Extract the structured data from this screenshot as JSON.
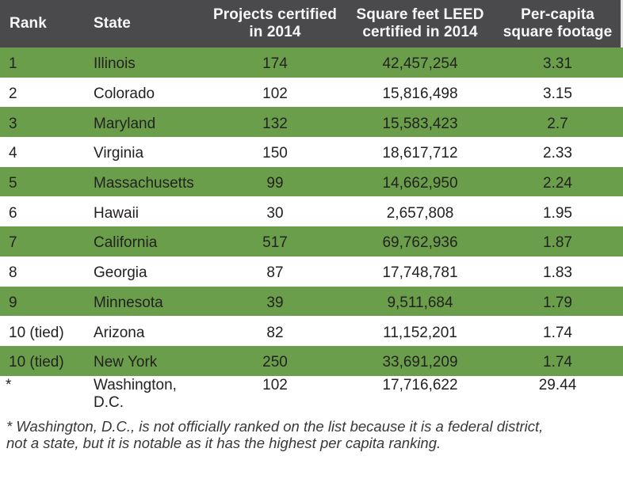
{
  "table": {
    "columns": [
      {
        "key": "rank",
        "label": "Rank"
      },
      {
        "key": "state",
        "label": "State"
      },
      {
        "key": "projects",
        "label": "Projects certified\nin 2014"
      },
      {
        "key": "sqft",
        "label": "Square feet LEED\ncertified in 2014"
      },
      {
        "key": "percap",
        "label": "Per-capita\nsquare footage"
      }
    ],
    "rows": [
      {
        "rank": "1",
        "state": "Illinois",
        "projects": "174",
        "sqft": "42,457,254",
        "percap": "3.31"
      },
      {
        "rank": "2",
        "state": "Colorado",
        "projects": "102",
        "sqft": "15,816,498",
        "percap": "3.15"
      },
      {
        "rank": "3",
        "state": "Maryland",
        "projects": "132",
        "sqft": "15,583,423",
        "percap": "2.7"
      },
      {
        "rank": "4",
        "state": "Virginia",
        "projects": "150",
        "sqft": "18,617,712",
        "percap": "2.33"
      },
      {
        "rank": "5",
        "state": "Massachusetts",
        "projects": "99",
        "sqft": "14,662,950",
        "percap": "2.24"
      },
      {
        "rank": "6",
        "state": "Hawaii",
        "projects": "30",
        "sqft": "2,657,808",
        "percap": "1.95"
      },
      {
        "rank": "7",
        "state": "California",
        "projects": "517",
        "sqft": "69,762,936",
        "percap": "1.87"
      },
      {
        "rank": "8",
        "state": "Georgia",
        "projects": "87",
        "sqft": "17,748,781",
        "percap": "1.83"
      },
      {
        "rank": "9",
        "state": "Minnesota",
        "projects": "39",
        "sqft": "9,511,684",
        "percap": "1.79"
      },
      {
        "rank": "10 (tied)",
        "state": "Arizona",
        "projects": "82",
        "sqft": "11,152,201",
        "percap": "1.74"
      },
      {
        "rank": "10 (tied)",
        "state": "New York",
        "projects": "250",
        "sqft": "33,691,209",
        "percap": "1.74"
      },
      {
        "rank": "*",
        "state": "Washington,\nD.C.",
        "projects": "102",
        "sqft": "17,716,622",
        "percap": "29.44"
      }
    ]
  },
  "footnote": "* Washington, D.C., is not officially ranked on the list because it is a federal district,\nnot a state, but it is notable as it has the highest per capita ranking.",
  "colors": {
    "header_bg": "#4a4a4c",
    "row_green": "#6b9e4a",
    "row_white": "#ffffff",
    "header_text": "#f7f7f7",
    "body_text": "#222220"
  },
  "chart_data": {
    "type": "table",
    "columns": [
      "Rank",
      "State",
      "Projects certified in 2014",
      "Square feet LEED certified in 2014",
      "Per-capita square footage"
    ],
    "rows": [
      [
        "1",
        "Illinois",
        "174",
        "42,457,254",
        "3.31"
      ],
      [
        "2",
        "Colorado",
        "102",
        "15,816,498",
        "3.15"
      ],
      [
        "3",
        "Maryland",
        "132",
        "15,583,423",
        "2.7"
      ],
      [
        "4",
        "Virginia",
        "150",
        "18,617,712",
        "2.33"
      ],
      [
        "5",
        "Massachusetts",
        "99",
        "14,662,950",
        "2.24"
      ],
      [
        "6",
        "Hawaii",
        "30",
        "2,657,808",
        "1.95"
      ],
      [
        "7",
        "California",
        "517",
        "69,762,936",
        "1.87"
      ],
      [
        "8",
        "Georgia",
        "87",
        "17,748,781",
        "1.83"
      ],
      [
        "9",
        "Minnesota",
        "39",
        "9,511,684",
        "1.79"
      ],
      [
        "10 (tied)",
        "Arizona",
        "82",
        "11,152,201",
        "1.74"
      ],
      [
        "10 (tied)",
        "New York",
        "250",
        "33,691,209",
        "1.74"
      ],
      [
        "*",
        "Washington, D.C.",
        "102",
        "17,716,622",
        "29.44"
      ]
    ],
    "footnote": "* Washington, D.C., is not officially ranked on the list because it is a federal district, not a state, but it is notable as it has the highest per capita ranking."
  }
}
